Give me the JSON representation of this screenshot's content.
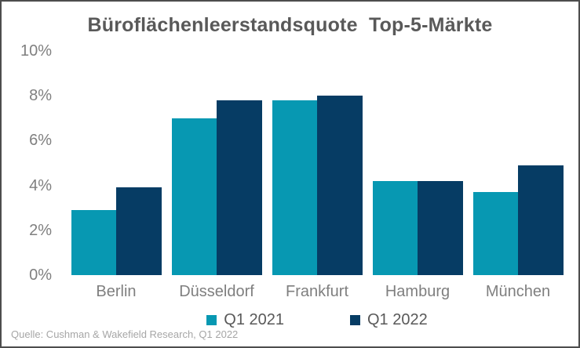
{
  "title": "Büroflächenleerstandsquote  Top-5-Märkte",
  "source": "Quelle: Cushman & Wakefield Research, Q1 2022",
  "colors": {
    "series_q1_2021": "#0798b2",
    "series_q1_2022": "#063c64",
    "title_text": "#595959",
    "axis_text": "#7f7f7f",
    "legend_text": "#595959",
    "source_text": "#a6a6a6",
    "frame_border": "#4d4d4d",
    "background": "#ffffff"
  },
  "chart_data": {
    "type": "bar",
    "title": "Büroflächenleerstandsquote  Top-5-Märkte",
    "categories": [
      "Berlin",
      "Düsseldorf",
      "Frankfurt",
      "Hamburg",
      "München"
    ],
    "series": [
      {
        "name": "Q1 2021",
        "color": "#0798b2",
        "values": [
          2.9,
          7.0,
          7.8,
          4.2,
          3.7
        ]
      },
      {
        "name": "Q1 2022",
        "color": "#063c64",
        "values": [
          3.9,
          7.8,
          8.0,
          4.2,
          4.9
        ]
      }
    ],
    "xlabel": "",
    "ylabel": "",
    "ylim": [
      0,
      10
    ],
    "yticks": [
      {
        "label": "0%",
        "value": 0
      },
      {
        "label": "2%",
        "value": 2
      },
      {
        "label": "4%",
        "value": 4
      },
      {
        "label": "6%",
        "value": 6
      },
      {
        "label": "8%",
        "value": 8
      },
      {
        "label": "10%",
        "value": 10
      }
    ],
    "grid": false,
    "legend_position": "bottom",
    "annotation": "Quelle: Cushman & Wakefield Research, Q1 2022"
  }
}
